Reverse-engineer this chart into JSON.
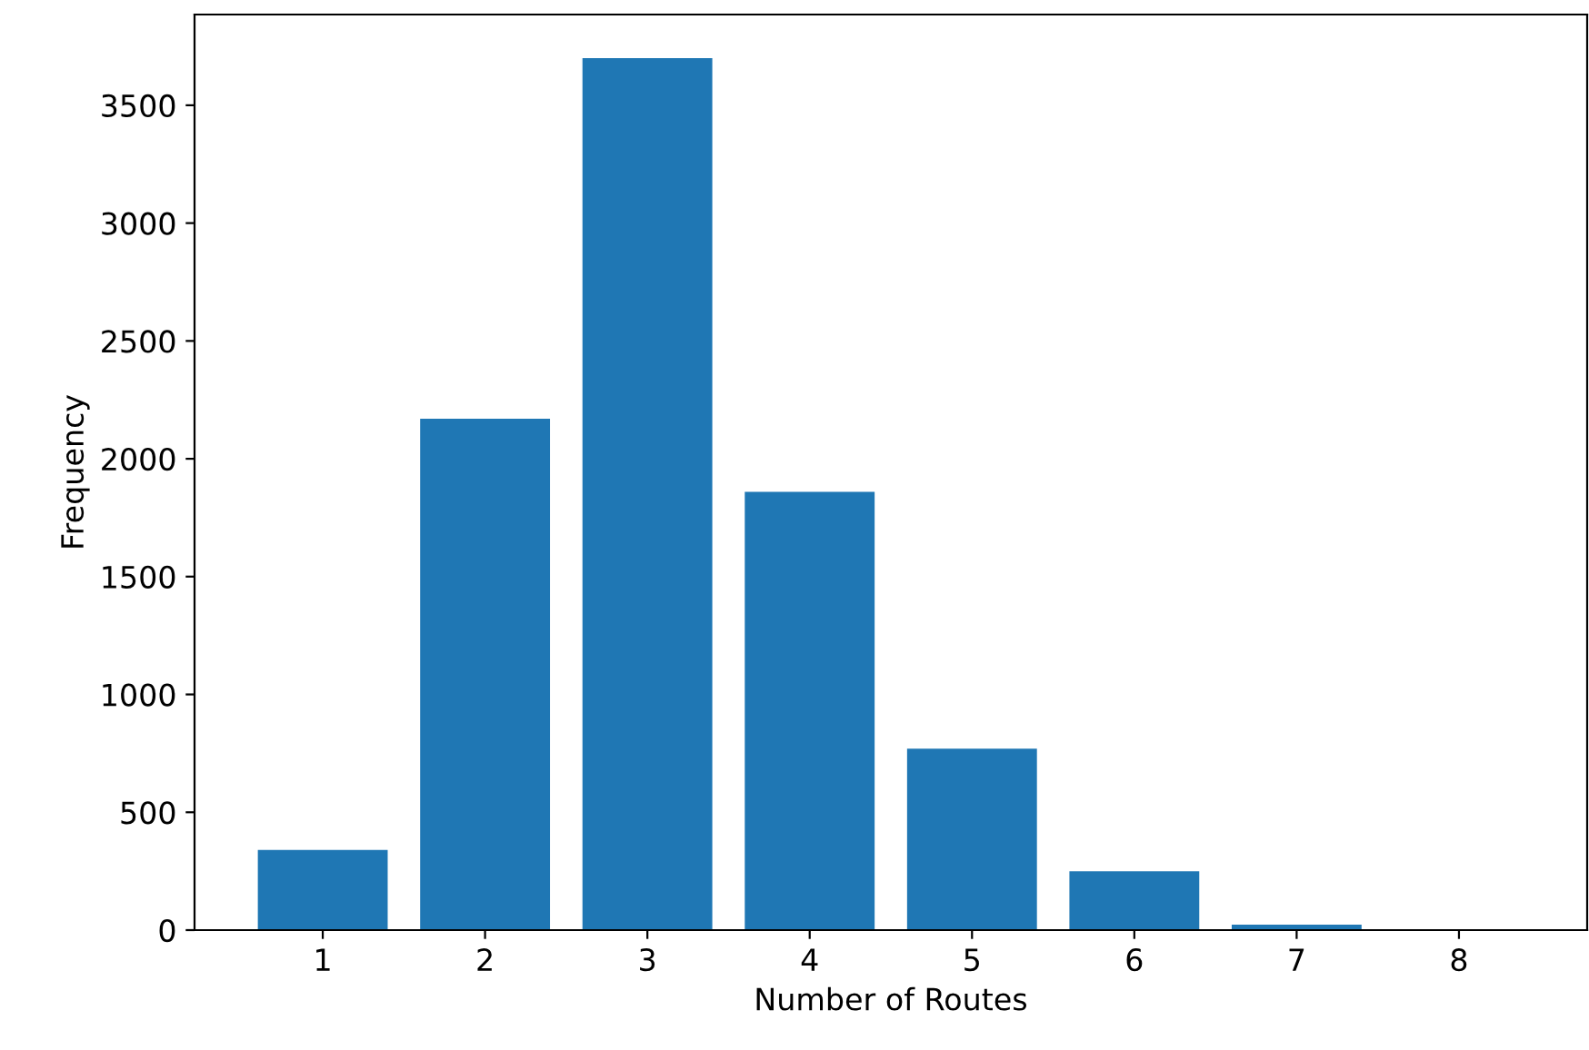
{
  "chart_data": {
    "type": "bar",
    "xlabel": "Number of Routes",
    "ylabel": "Frequency",
    "x": [
      1,
      2,
      3,
      4,
      5,
      6,
      7,
      8
    ],
    "series": [
      {
        "color": "#1f77b4",
        "values": [
          340,
          2170,
          3700,
          1860,
          770,
          250,
          23,
          2
        ]
      }
    ],
    "xlim": [
      0.21,
      8.79
    ],
    "xticks": [
      1,
      2,
      3,
      4,
      5,
      6,
      7,
      8
    ],
    "ylim": [
      0,
      3885
    ],
    "yticks": [
      0,
      500,
      1000,
      1500,
      2000,
      2500,
      3000,
      3500
    ],
    "grid": false,
    "legend": false
  }
}
